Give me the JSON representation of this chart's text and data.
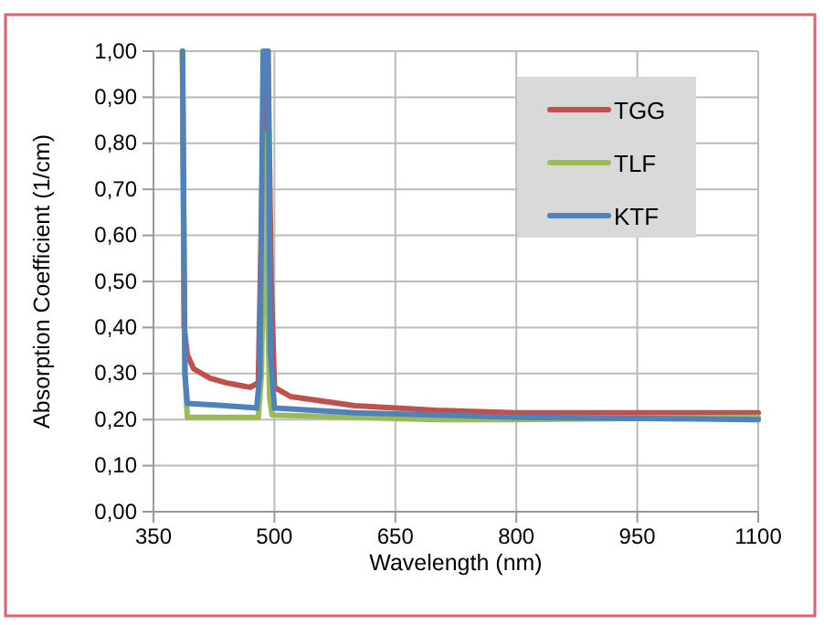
{
  "chart_data": {
    "type": "line",
    "xlabel": "Wavelength (nm)",
    "ylabel": "Absorption Coefficient (1/cm)",
    "xlim": [
      350,
      1100
    ],
    "xticks": [
      350,
      500,
      650,
      800,
      950,
      1100
    ],
    "ylim": [
      0,
      1
    ],
    "yticks": [
      {
        "value": 0,
        "label": "0,00"
      },
      {
        "value": 0.1,
        "label": "0,10"
      },
      {
        "value": 0.2,
        "label": "0,20"
      },
      {
        "value": 0.3,
        "label": "0,30"
      },
      {
        "value": 0.4,
        "label": "0,40"
      },
      {
        "value": 0.5,
        "label": "0,50"
      },
      {
        "value": 0.6,
        "label": "0,60"
      },
      {
        "value": 0.7,
        "label": "0,70"
      },
      {
        "value": 0.8,
        "label": "0,80"
      },
      {
        "value": 0.9,
        "label": "0,90"
      },
      {
        "value": 1,
        "label": "1,00"
      }
    ],
    "grid": true,
    "legend": "top right",
    "marker": "none",
    "line_style": "solid",
    "series": [
      {
        "name": "TGG",
        "color": "#c0504d",
        "x": [
          386,
          388,
          392,
          400,
          420,
          440,
          470,
          480,
          488,
          492,
          496,
          500,
          520,
          600,
          700,
          800,
          1100
        ],
        "values": [
          1,
          0.4,
          0.34,
          0.31,
          0.29,
          0.28,
          0.27,
          0.28,
          1,
          1,
          0.5,
          0.27,
          0.25,
          0.23,
          0.22,
          0.215,
          0.215
        ]
      },
      {
        "name": "TLF",
        "color": "#9bbb59",
        "x": [
          386,
          389,
          392,
          480,
          484,
          488,
          491,
          494,
          497,
          600,
          700,
          800,
          1100
        ],
        "values": [
          1,
          0.3,
          0.205,
          0.205,
          0.3,
          0.82,
          0.5,
          0.25,
          0.21,
          0.205,
          0.2,
          0.2,
          0.205
        ]
      },
      {
        "name": "KTF",
        "color": "#4f81bd",
        "x": [
          386,
          389,
          392,
          440,
          478,
          482,
          486,
          492,
          495,
          500,
          600,
          800,
          1100
        ],
        "values": [
          1,
          0.3,
          0.235,
          0.23,
          0.225,
          0.3,
          1,
          1,
          0.35,
          0.225,
          0.215,
          0.205,
          0.2
        ]
      }
    ]
  }
}
